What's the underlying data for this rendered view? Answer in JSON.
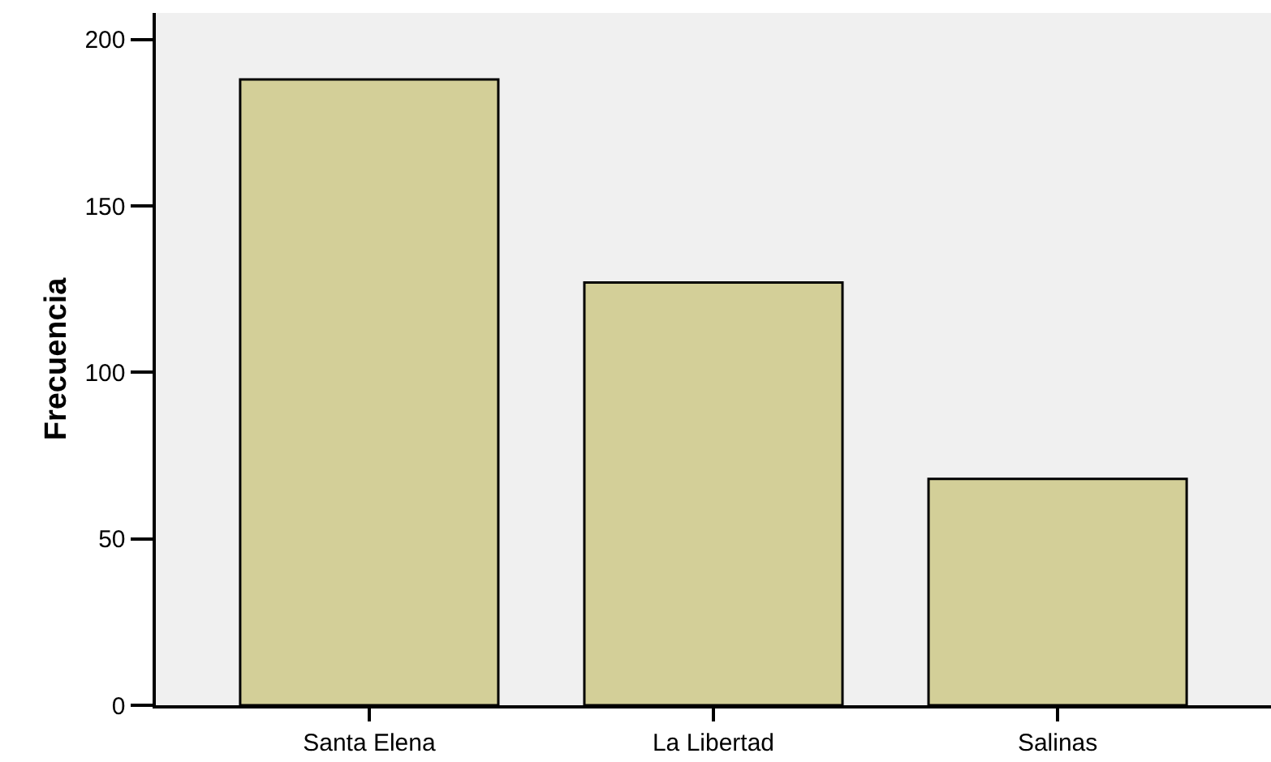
{
  "chart_data": {
    "type": "bar",
    "ylabel": "Frecuencia",
    "categories": [
      "Santa Elena",
      "La Libertad",
      "Salinas"
    ],
    "values": [
      188,
      127,
      68
    ],
    "color": "#d3cf98",
    "ylim": [
      0,
      208
    ],
    "yticks": [
      0,
      50,
      100,
      150,
      200
    ],
    "grid": false
  }
}
